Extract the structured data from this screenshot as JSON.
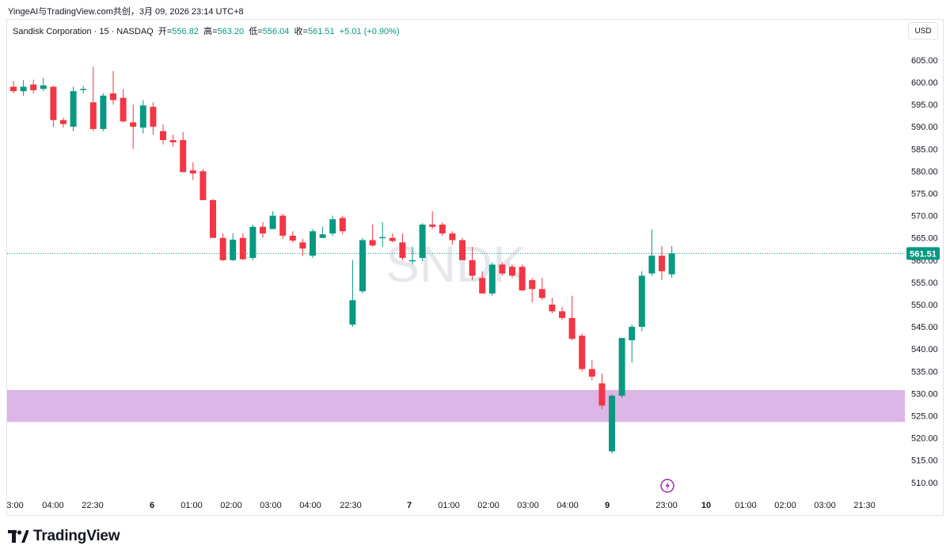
{
  "header": {
    "publisher_line": "YingeAI与TradingView.com共创，3月 09, 2026 23:14 UTC+8"
  },
  "legend": {
    "symbol": "Sandisk Corporation",
    "interval": "15",
    "exchange": "NASDAQ",
    "open_label": "开",
    "open_value": "556.82",
    "high_label": "高",
    "high_value": "563.20",
    "low_label": "低",
    "low_value": "556.04",
    "close_label": "收",
    "close_value": "561.51",
    "change": "+5.01 (+0.90%)"
  },
  "currency_button": "USD",
  "watermark": "SNDK",
  "brand": "TradingView",
  "colors": {
    "up": "#089981",
    "down": "#f23645",
    "zone": "#dcb6e6",
    "last_price": "#089981",
    "event_icon": "#9c27b0"
  },
  "chart_data": {
    "type": "candlestick",
    "title": "Sandisk Corporation · 15 · NASDAQ",
    "ylim": [
      506,
      610
    ],
    "y_ticks": [
      510,
      515,
      520,
      525,
      530,
      535,
      540,
      545,
      550,
      555,
      560,
      565,
      570,
      575,
      580,
      585,
      590,
      595,
      600,
      605
    ],
    "y_tick_labels": [
      "510.00",
      "515.00",
      "520.00",
      "525.00",
      "530.00",
      "535.00",
      "540.00",
      "545.00",
      "550.00",
      "555.00",
      "560.00",
      "565.00",
      "570.00",
      "575.00",
      "580.00",
      "585.00",
      "590.00",
      "595.00",
      "600.00",
      "605.00"
    ],
    "x_tick_labels": [
      "3:00",
      "04:00",
      "22:30",
      "6",
      "01:00",
      "02:00",
      "03:00",
      "04:00",
      "22:30",
      "7",
      "01:00",
      "02:00",
      "03:00",
      "04:00",
      "9",
      "23:00",
      "10",
      "01:00",
      "02:00",
      "03:00",
      "21:30"
    ],
    "last_price": 561.51,
    "last_price_label": "561.51",
    "support_zone": [
      523.6,
      530.8
    ],
    "candles": [
      [
        599.0,
        600.2,
        597.5,
        598.0
      ],
      [
        598.0,
        600.5,
        597.0,
        599.0
      ],
      [
        599.5,
        600.6,
        597.5,
        598.2
      ],
      [
        598.5,
        601.0,
        598.0,
        599.3
      ],
      [
        599.0,
        599.2,
        590.0,
        591.5
      ],
      [
        591.5,
        592.0,
        589.8,
        590.6
      ],
      [
        590.0,
        599.0,
        589.0,
        598.0
      ],
      [
        598.5,
        599.2,
        597.5,
        598.5
      ],
      [
        595.5,
        603.5,
        589.0,
        589.5
      ],
      [
        589.5,
        597.5,
        589.0,
        597.0
      ],
      [
        597.5,
        602.5,
        595.0,
        596.0
      ],
      [
        596.5,
        598.5,
        591.0,
        591.2
      ],
      [
        591.0,
        595.0,
        585.0,
        590.0
      ],
      [
        589.8,
        596.0,
        588.5,
        594.8
      ],
      [
        594.5,
        595.5,
        588.2,
        590.0
      ],
      [
        589.0,
        590.5,
        586.0,
        587.0
      ],
      [
        587.0,
        588.2,
        585.5,
        586.5
      ],
      [
        587.0,
        588.8,
        579.8,
        579.8
      ],
      [
        580.2,
        582.0,
        578.0,
        579.5
      ],
      [
        580.0,
        580.5,
        573.5,
        573.5
      ],
      [
        573.5,
        573.8,
        565.0,
        565.0
      ],
      [
        565.0,
        566.0,
        559.8,
        560.0
      ],
      [
        560.0,
        566.0,
        559.8,
        564.6
      ],
      [
        565.0,
        566.0,
        560.0,
        560.2
      ],
      [
        560.5,
        568.0,
        560.0,
        567.5
      ],
      [
        567.5,
        568.5,
        565.0,
        566.0
      ],
      [
        567.0,
        571.0,
        567.0,
        570.0
      ],
      [
        570.0,
        570.5,
        564.8,
        565.5
      ],
      [
        565.5,
        566.5,
        564.0,
        564.4
      ],
      [
        564.0,
        564.8,
        561.0,
        562.6
      ],
      [
        561.0,
        567.0,
        560.5,
        566.5
      ],
      [
        565.0,
        567.5,
        565.0,
        565.8
      ],
      [
        566.0,
        570.0,
        565.5,
        569.2
      ],
      [
        569.5,
        570.0,
        565.8,
        566.5
      ],
      [
        545.5,
        560.0,
        545.0,
        551.0
      ],
      [
        553.0,
        565.0,
        552.5,
        564.5
      ],
      [
        564.5,
        568.0,
        563.0,
        563.3
      ],
      [
        565.0,
        568.5,
        563.0,
        565.2
      ],
      [
        565.0,
        566.0,
        564.0,
        564.3
      ],
      [
        564.0,
        566.0,
        560.0,
        560.5
      ],
      [
        560.0,
        563.0,
        559.0,
        560.0
      ],
      [
        560.5,
        568.3,
        559.8,
        568.0
      ],
      [
        568.0,
        571.0,
        567.0,
        567.5
      ],
      [
        568.0,
        568.5,
        565.5,
        566.0
      ],
      [
        566.0,
        566.5,
        563.5,
        564.5
      ],
      [
        564.5,
        565.0,
        560.0,
        560.0
      ],
      [
        560.0,
        563.0,
        555.5,
        556.5
      ],
      [
        556.0,
        557.5,
        552.5,
        552.5
      ],
      [
        552.5,
        559.5,
        552.0,
        559.0
      ],
      [
        559.0,
        559.5,
        556.5,
        557.0
      ],
      [
        558.5,
        559.0,
        556.0,
        556.5
      ],
      [
        558.5,
        559.0,
        553.0,
        553.2
      ],
      [
        555.5,
        556.0,
        550.5,
        553.5
      ],
      [
        553.5,
        556.0,
        551.0,
        551.5
      ],
      [
        550.0,
        551.5,
        548.0,
        548.5
      ],
      [
        548.5,
        549.5,
        546.5,
        547.0
      ],
      [
        547.0,
        552.0,
        542.0,
        542.3
      ],
      [
        543.0,
        543.5,
        535.0,
        535.5
      ],
      [
        535.5,
        537.5,
        533.0,
        533.8
      ],
      [
        532.3,
        534.5,
        526.5,
        527.3
      ],
      [
        517.0,
        529.8,
        516.5,
        529.5
      ],
      [
        529.5,
        542.5,
        529.0,
        542.5
      ],
      [
        542.0,
        545.5,
        537.0,
        545.0
      ],
      [
        545.0,
        557.5,
        544.0,
        556.5
      ],
      [
        557.0,
        566.9,
        556.5,
        561.0
      ],
      [
        561.0,
        563.2,
        555.5,
        557.5
      ],
      [
        556.82,
        563.2,
        556.04,
        561.51
      ]
    ]
  }
}
